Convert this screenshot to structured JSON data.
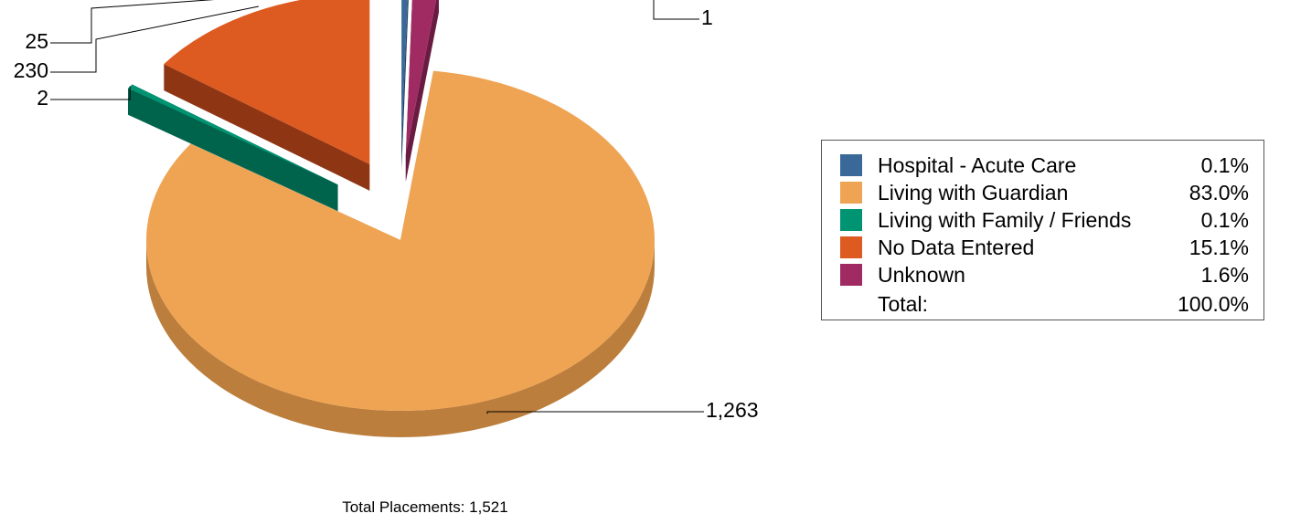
{
  "chart_data": {
    "type": "pie",
    "style": "3d-exploded",
    "slices": [
      {
        "label": "Hospital - Acute Care",
        "value": 1,
        "percent": "0.1%",
        "value_label": "1",
        "color": "#3A6898",
        "side": "#1F3F63"
      },
      {
        "label": "Living with Guardian",
        "value": 1263,
        "percent": "83.0%",
        "value_label": "1,263",
        "color": "#EFA454",
        "side": "#BC7E3C"
      },
      {
        "label": "Living with Family / Friends",
        "value": 2,
        "percent": "0.1%",
        "value_label": "2",
        "color": "#009473",
        "side": "#00644C"
      },
      {
        "label": "No Data Entered",
        "value": 230,
        "percent": "15.1%",
        "value_label": "230",
        "color": "#DD5A20",
        "side": "#8E3614"
      },
      {
        "label": "Unknown",
        "value": 25,
        "percent": "1.6%",
        "value_label": "25",
        "color": "#A02B63",
        "side": "#6A1B41"
      }
    ],
    "legend": {
      "placement": "right",
      "total_label": "Total:",
      "total_percent": "100.0%"
    },
    "footer": "Total Placements: 1,521"
  }
}
